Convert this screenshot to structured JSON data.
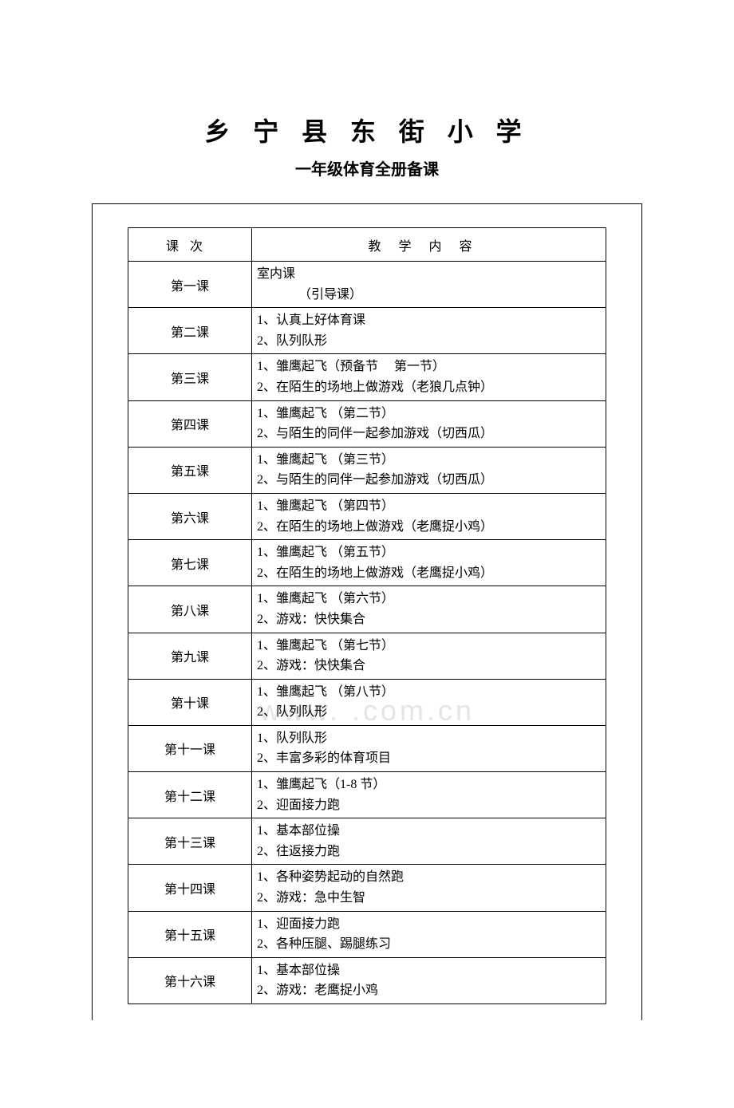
{
  "title_main": "乡 宁 县 东 街 小 学",
  "title_sub": "一年级体育全册备课",
  "watermark": "www.         .com.cn",
  "header": {
    "col1": "课次",
    "col2": "教学内容"
  },
  "rows": [
    {
      "lesson": "第一课",
      "lines": [
        "室内课",
        "（引导课）"
      ],
      "indent_second": true
    },
    {
      "lesson": "第二课",
      "lines": [
        "1、认真上好体育课",
        "2、队列队形"
      ]
    },
    {
      "lesson": "第三课",
      "lines": [
        "1、雏鹰起飞（预备节　 第一节）",
        "2、在陌生的场地上做游戏（老狼几点钟）"
      ]
    },
    {
      "lesson": "第四课",
      "lines": [
        "1、雏鹰起飞 （第二节）",
        "2、与陌生的同伴一起参加游戏（切西瓜）"
      ]
    },
    {
      "lesson": "第五课",
      "lines": [
        "1、雏鹰起飞 （第三节）",
        "2、与陌生的同伴一起参加游戏（切西瓜）"
      ]
    },
    {
      "lesson": "第六课",
      "lines": [
        "1、雏鹰起飞 （第四节）",
        "2、在陌生的场地上做游戏（老鹰捉小鸡）"
      ]
    },
    {
      "lesson": "第七课",
      "lines": [
        "1、雏鹰起飞 （第五节）",
        "2、在陌生的场地上做游戏（老鹰捉小鸡）"
      ]
    },
    {
      "lesson": "第八课",
      "lines": [
        "1、雏鹰起飞 （第六节）",
        "2、游戏：快快集合"
      ]
    },
    {
      "lesson": "第九课",
      "lines": [
        "1、雏鹰起飞 （第七节）",
        "2、游戏：快快集合"
      ]
    },
    {
      "lesson": "第十课",
      "lines": [
        "1、雏鹰起飞 （第八节）",
        "2、队列队形"
      ]
    },
    {
      "lesson": "第十一课",
      "lines": [
        "1、队列队形",
        "2、丰富多彩的体育项目"
      ]
    },
    {
      "lesson": "第十二课",
      "lines": [
        "1、雏鹰起飞（1-8 节）",
        "2、迎面接力跑"
      ]
    },
    {
      "lesson": "第十三课",
      "lines": [
        "1、基本部位操",
        "2、往返接力跑"
      ]
    },
    {
      "lesson": "第十四课",
      "lines": [
        "1、各种姿势起动的自然跑",
        "2、游戏：急中生智"
      ]
    },
    {
      "lesson": "第十五课",
      "lines": [
        "1、迎面接力跑",
        "2、各种压腿、踢腿练习"
      ]
    },
    {
      "lesson": "第十六课",
      "lines": [
        "1、基本部位操",
        "2、游戏：老鹰捉小鸡"
      ]
    }
  ]
}
